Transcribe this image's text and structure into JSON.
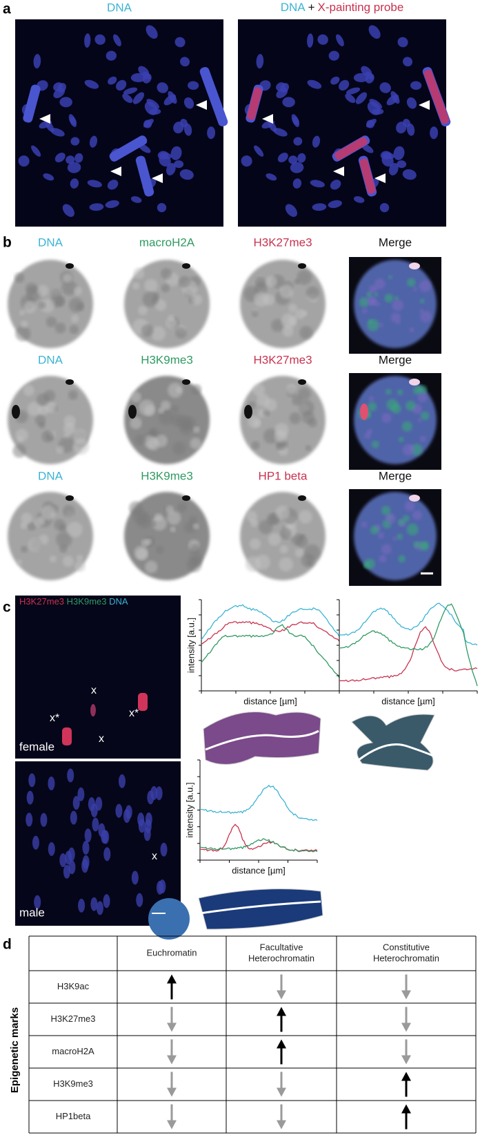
{
  "panel_a": {
    "label": "a",
    "left_title": "DNA",
    "right_title": [
      "DNA",
      "+",
      "X-painting probe"
    ]
  },
  "panel_b": {
    "label": "b",
    "rows": [
      [
        "DNA",
        "macroH2A",
        "H3K27me3",
        "Merge"
      ],
      [
        "DNA",
        "H3K9me3",
        "H3K27me3",
        "Merge"
      ],
      [
        "DNA",
        "H3K9me3",
        "HP1 beta",
        "Merge"
      ]
    ]
  },
  "panel_c": {
    "label": "c",
    "legend": [
      "H3K27me3",
      "/",
      "H3K9me3",
      "/",
      "DNA"
    ],
    "female": "female",
    "male": "male",
    "female_marks": [
      "x",
      "x*",
      "x*",
      "x"
    ],
    "male_marks": [
      "x"
    ],
    "y_label": "intensity [a.u.]",
    "x_label": "distance [µm]"
  },
  "panel_d": {
    "label": "d",
    "side_label": "Epigenetic marks",
    "header": [
      [
        "Euchromatin"
      ],
      [
        "Facultative",
        "Heterochromatin"
      ],
      [
        "Constitutive",
        "Heterochromatin"
      ]
    ],
    "rows": [
      "H3K9ac",
      "H3K27me3",
      "macroH2A",
      "H3K9me3",
      "HP1beta"
    ]
  }
}
